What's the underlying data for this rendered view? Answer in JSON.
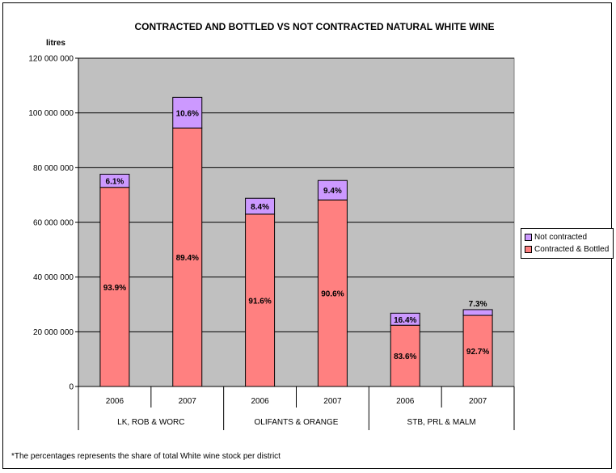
{
  "chart_data": {
    "type": "bar",
    "stacked": true,
    "title": "CONTRACTED AND BOTTLED VS NOT CONTRACTED NATURAL WHITE WINE",
    "ylabel": "litres",
    "xlabel": "",
    "ylim": [
      0,
      120000000
    ],
    "y_ticks": [
      "0",
      "20 000 000",
      "40 000 000",
      "60 000 000",
      "80 000 000",
      "100 000 000",
      "120 000 000"
    ],
    "y_tick_values": [
      0,
      20000000,
      40000000,
      60000000,
      80000000,
      100000000,
      120000000
    ],
    "grid": true,
    "legend_position": "right",
    "groups": [
      "LK, ROB & WORC",
      "OLIFANTS & ORANGE",
      "STB, PRL & MALM"
    ],
    "categories": [
      "2006",
      "2007",
      "2006",
      "2007",
      "2006",
      "2007"
    ],
    "series": [
      {
        "name": "Contracted & Bottled",
        "color": "#ff8080",
        "values": [
          72800000,
          94500000,
          63000000,
          68200000,
          22400000,
          26000000
        ],
        "labels": [
          "93.9%",
          "89.4%",
          "91.6%",
          "90.6%",
          "83.6%",
          "92.7%"
        ]
      },
      {
        "name": "Not contracted",
        "color": "#cc99ff",
        "values": [
          4800000,
          11200000,
          5800000,
          7100000,
          4400000,
          2100000
        ],
        "labels": [
          "6.1%",
          "10.6%",
          "8.4%",
          "9.4%",
          "16.4%",
          "7.3%"
        ]
      }
    ],
    "footnote": "*The percentages represents the share of total White wine stock per district"
  }
}
